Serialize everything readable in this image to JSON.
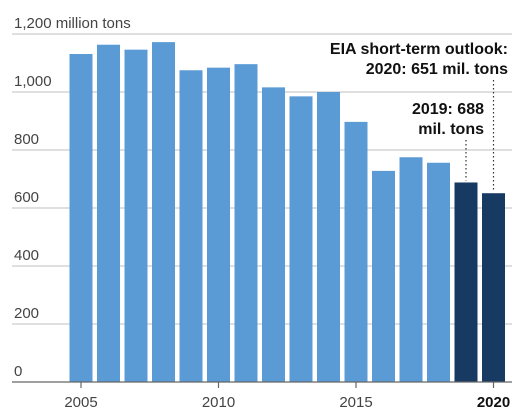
{
  "chart_data": {
    "type": "bar",
    "title": "",
    "xlabel": "",
    "ylabel": "",
    "y_unit_label": "million tons",
    "ylim": [
      0,
      1200
    ],
    "yticks": [
      0,
      200,
      400,
      600,
      800,
      1000,
      1200
    ],
    "ytick_labels": [
      "0",
      "200",
      "400",
      "600",
      "800",
      "1,000",
      "1,200"
    ],
    "xticks": [
      2005,
      2010,
      2015,
      2020
    ],
    "xtick_labels": [
      "2005",
      "2010",
      "2015",
      "2020"
    ],
    "grid": true,
    "categories": [
      2005,
      2006,
      2007,
      2008,
      2009,
      2010,
      2011,
      2012,
      2013,
      2014,
      2015,
      2016,
      2017,
      2018,
      2019,
      2020
    ],
    "values": [
      1131,
      1163,
      1146,
      1172,
      1075,
      1084,
      1096,
      1016,
      985,
      1000,
      897,
      728,
      775,
      756,
      688,
      651
    ],
    "bar_colors": {
      "historical": "#5b9bd5",
      "outlook": "#173a63"
    },
    "outlook_categories": [
      2019,
      2020
    ],
    "annotations": [
      {
        "category": 2020,
        "lines": [
          "EIA short-term outlook:",
          "2020: 651 mil. tons"
        ]
      },
      {
        "category": 2019,
        "lines": [
          "2019: 688",
          "mil. tons"
        ]
      }
    ]
  }
}
